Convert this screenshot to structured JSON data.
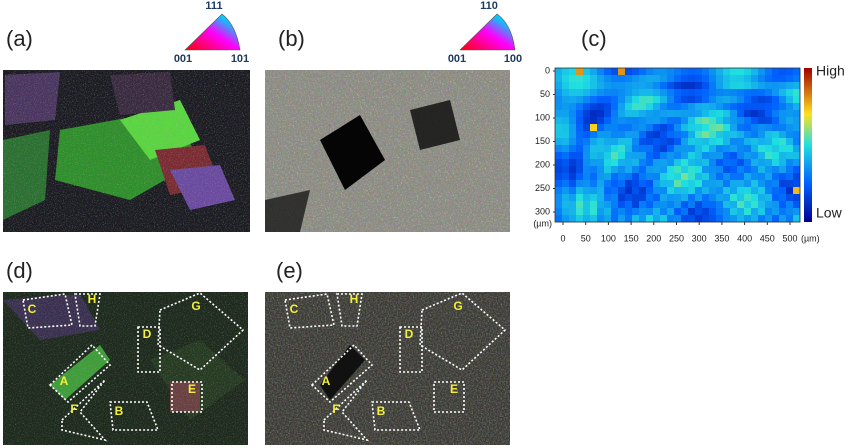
{
  "panels": {
    "a": {
      "label": "(a)",
      "triangle": {
        "top": "111",
        "left": "001",
        "right": "101"
      }
    },
    "b": {
      "label": "(b)",
      "triangle": {
        "top": "110",
        "left": "001",
        "right": "100"
      }
    },
    "c": {
      "label": "(c)",
      "colorbar": {
        "high": "High",
        "low": "Low"
      },
      "yticks": [
        0,
        50,
        100,
        150,
        200,
        250,
        300
      ],
      "xticks": [
        0,
        50,
        100,
        150,
        200,
        250,
        300,
        350,
        400,
        450,
        500
      ],
      "y_unit": "(µm)",
      "x_unit": "(µm)"
    },
    "d": {
      "label": "(d)",
      "regions": [
        "C",
        "H",
        "G",
        "D",
        "A",
        "E",
        "F",
        "B"
      ]
    },
    "e": {
      "label": "(e)",
      "regions": [
        "C",
        "H",
        "G",
        "D",
        "A",
        "E",
        "F",
        "B"
      ]
    }
  }
}
